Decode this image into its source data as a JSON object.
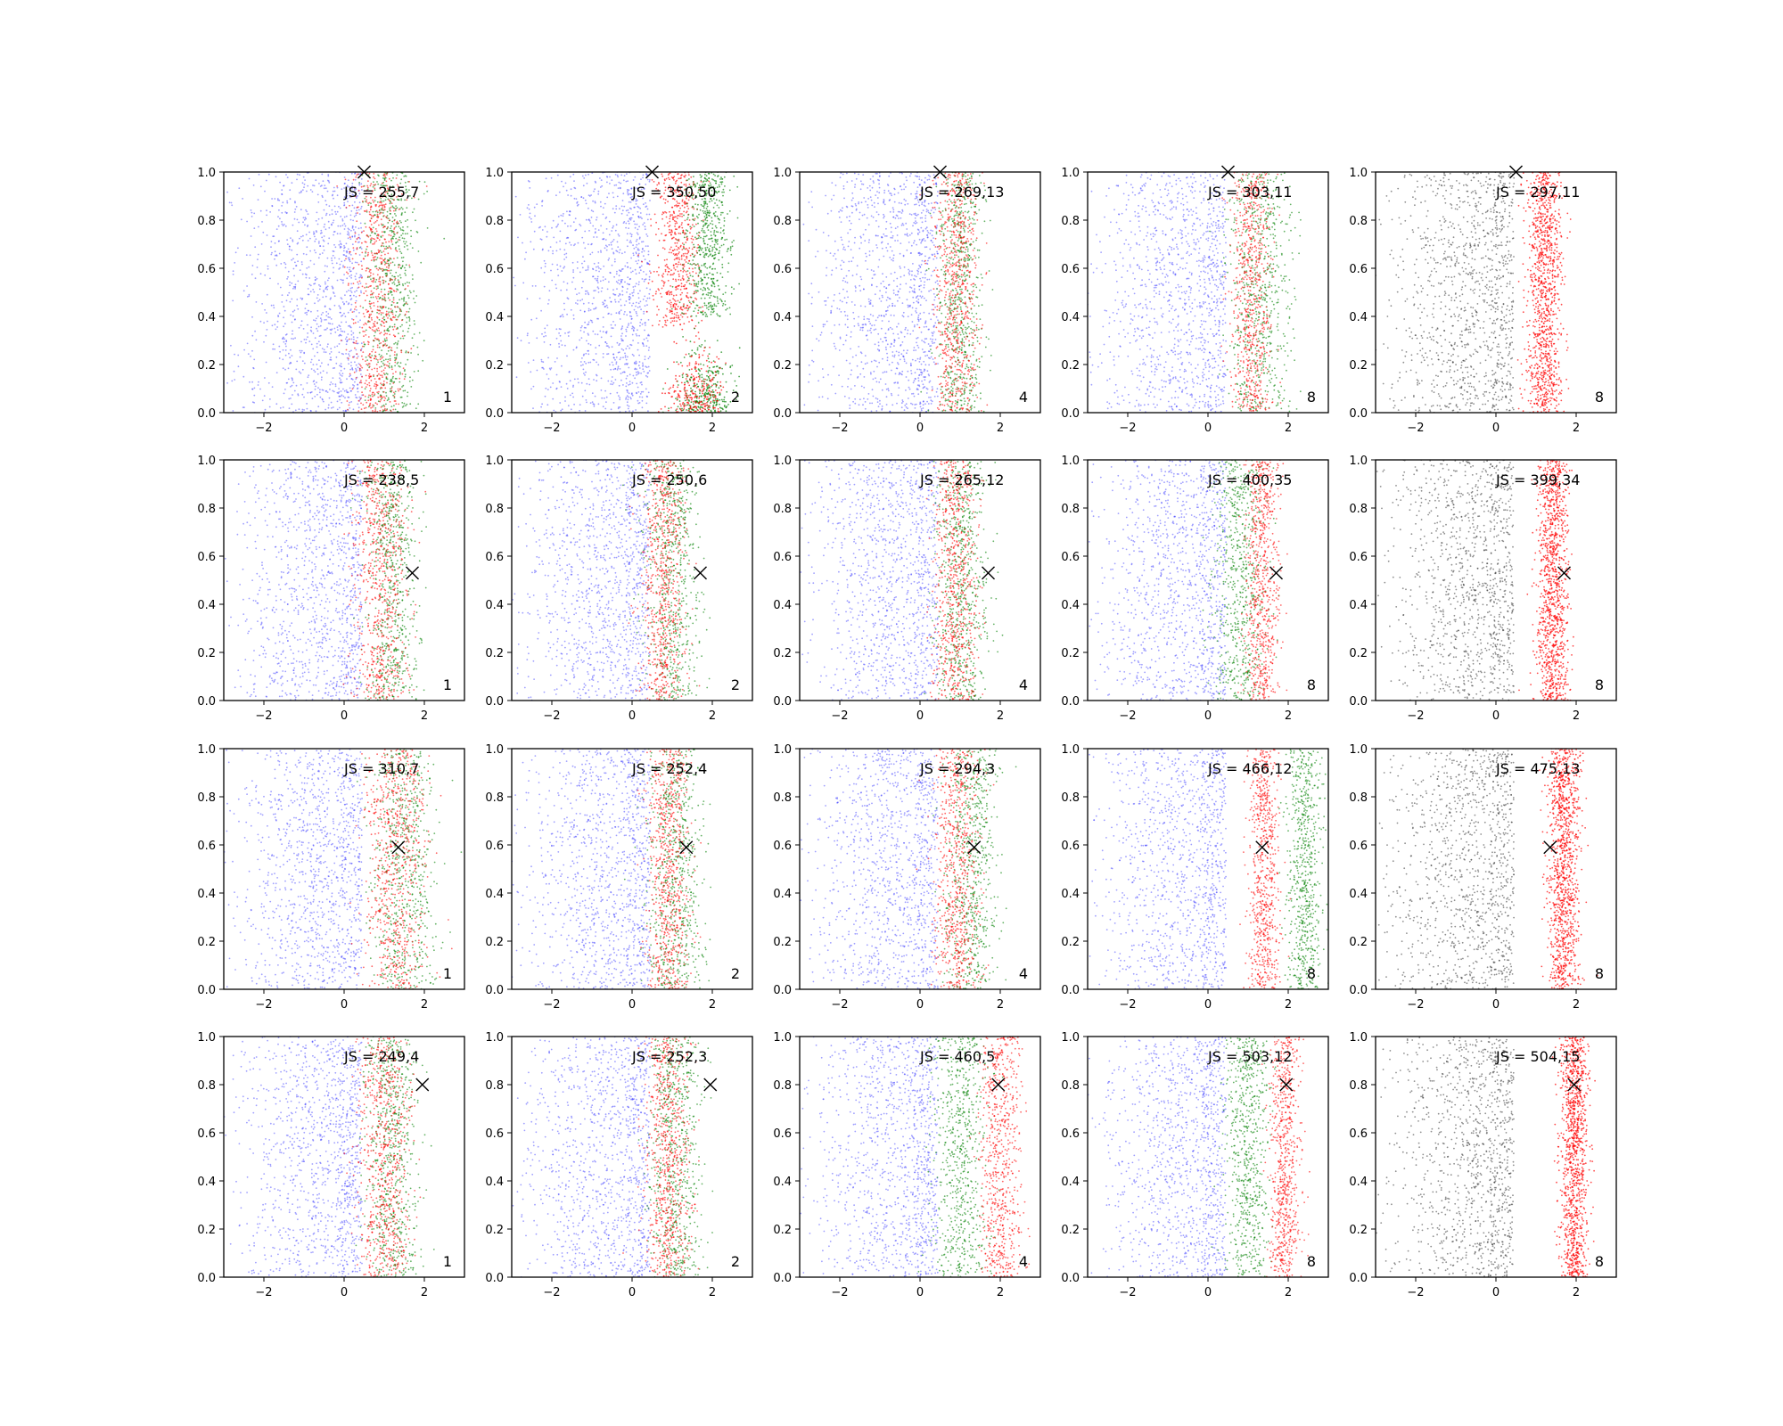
{
  "chart_data": {
    "type": "scatter",
    "layout": {
      "rows": 4,
      "cols": 5
    },
    "xlim": [
      -3,
      3
    ],
    "ylim": [
      0,
      1
    ],
    "xticks": [
      -2,
      0,
      2
    ],
    "yticks": [
      0.0,
      0.2,
      0.4,
      0.6,
      0.8,
      1.0
    ],
    "xtick_labels": [
      "−2",
      "0",
      "2"
    ],
    "ytick_labels": [
      "0.0",
      "0.2",
      "0.4",
      "0.6",
      "0.8",
      "1.0"
    ],
    "grid": false,
    "colors": {
      "blue": "#4040ff",
      "red": "#ff0000",
      "green": "#008000",
      "gray": "#333333",
      "marker": "#000000"
    },
    "panels": [
      {
        "row": 0,
        "col": 0,
        "label": "JS = 255,7",
        "k": "1",
        "marker": {
          "x": 0.5,
          "y": 1.0
        },
        "mode": "mix",
        "red_center": 0.8,
        "red_spread": 0.6,
        "green_center": 1.2,
        "green_spread": 0.6
      },
      {
        "row": 0,
        "col": 1,
        "label": "JS = 350,50",
        "k": "2",
        "marker": {
          "x": 0.5,
          "y": 1.0
        },
        "mode": "split",
        "red_center": 1.1,
        "red_spread": 0.5,
        "green_center": 1.9,
        "green_spread": 0.5
      },
      {
        "row": 0,
        "col": 2,
        "label": "JS = 269,13",
        "k": "4",
        "marker": {
          "x": 0.5,
          "y": 1.0
        },
        "mode": "mix",
        "red_center": 0.9,
        "red_spread": 0.5,
        "green_center": 1.0,
        "green_spread": 0.5
      },
      {
        "row": 0,
        "col": 3,
        "label": "JS = 303,11",
        "k": "8",
        "marker": {
          "x": 0.5,
          "y": 1.0
        },
        "mode": "mix",
        "red_center": 1.1,
        "red_spread": 0.45,
        "green_center": 1.3,
        "green_spread": 0.7
      },
      {
        "row": 0,
        "col": 4,
        "label": "JS = 297,11",
        "k": "8",
        "marker": {
          "x": 0.5,
          "y": 1.0
        },
        "mode": "gray",
        "red_center": 1.2,
        "red_spread": 0.45
      },
      {
        "row": 1,
        "col": 0,
        "label": "JS = 238,5",
        "k": "1",
        "marker": {
          "x": 1.7,
          "y": 0.53
        },
        "mode": "mix",
        "red_center": 0.9,
        "red_spread": 0.6,
        "green_center": 1.2,
        "green_spread": 0.6
      },
      {
        "row": 1,
        "col": 1,
        "label": "JS = 250,6",
        "k": "2",
        "marker": {
          "x": 1.7,
          "y": 0.53
        },
        "mode": "mix",
        "red_center": 0.8,
        "red_spread": 0.5,
        "green_center": 1.0,
        "green_spread": 0.6
      },
      {
        "row": 1,
        "col": 2,
        "label": "JS = 265,12",
        "k": "4",
        "marker": {
          "x": 1.7,
          "y": 0.53
        },
        "mode": "mix",
        "red_center": 0.9,
        "red_spread": 0.5,
        "green_center": 1.0,
        "green_spread": 0.6
      },
      {
        "row": 1,
        "col": 3,
        "label": "JS = 400,35",
        "k": "8",
        "marker": {
          "x": 1.7,
          "y": 0.53
        },
        "mode": "mix",
        "red_center": 1.35,
        "red_spread": 0.4,
        "green_center": 0.8,
        "green_spread": 0.6
      },
      {
        "row": 1,
        "col": 4,
        "label": "JS = 399,34",
        "k": "8",
        "marker": {
          "x": 1.7,
          "y": 0.53
        },
        "mode": "gray",
        "red_center": 1.4,
        "red_spread": 0.4
      },
      {
        "row": 2,
        "col": 0,
        "label": "JS = 310,7",
        "k": "1",
        "marker": {
          "x": 1.35,
          "y": 0.59
        },
        "mode": "mix",
        "red_center": 1.3,
        "red_spread": 0.7,
        "green_center": 1.5,
        "green_spread": 0.7
      },
      {
        "row": 2,
        "col": 1,
        "label": "JS = 252,4",
        "k": "2",
        "marker": {
          "x": 1.35,
          "y": 0.59
        },
        "mode": "mix",
        "red_center": 0.9,
        "red_spread": 0.5,
        "green_center": 1.1,
        "green_spread": 0.6
      },
      {
        "row": 2,
        "col": 2,
        "label": "JS = 294,3",
        "k": "4",
        "marker": {
          "x": 1.35,
          "y": 0.59
        },
        "mode": "mix",
        "red_center": 0.9,
        "red_spread": 0.5,
        "green_center": 1.3,
        "green_spread": 0.6
      },
      {
        "row": 2,
        "col": 3,
        "label": "JS = 466,12",
        "k": "8",
        "marker": {
          "x": 1.35,
          "y": 0.59
        },
        "mode": "mix",
        "red_center": 1.4,
        "red_spread": 0.35,
        "green_center": 2.4,
        "green_spread": 0.4
      },
      {
        "row": 2,
        "col": 4,
        "label": "JS = 475,13",
        "k": "8",
        "marker": {
          "x": 1.35,
          "y": 0.59
        },
        "mode": "gray",
        "red_center": 1.7,
        "red_spread": 0.4
      },
      {
        "row": 3,
        "col": 0,
        "label": "JS = 249,4",
        "k": "1",
        "marker": {
          "x": 1.95,
          "y": 0.8
        },
        "mode": "mix",
        "red_center": 1.0,
        "red_spread": 0.6,
        "green_center": 1.2,
        "green_spread": 0.6
      },
      {
        "row": 3,
        "col": 1,
        "label": "JS = 252,3",
        "k": "2",
        "marker": {
          "x": 1.95,
          "y": 0.8
        },
        "mode": "mix",
        "red_center": 0.9,
        "red_spread": 0.5,
        "green_center": 1.1,
        "green_spread": 0.6
      },
      {
        "row": 3,
        "col": 2,
        "label": "JS = 460,5",
        "k": "4",
        "marker": {
          "x": 1.95,
          "y": 0.8
        },
        "mode": "mix",
        "red_center": 2.0,
        "red_spread": 0.45,
        "green_center": 1.0,
        "green_spread": 0.6
      },
      {
        "row": 3,
        "col": 3,
        "label": "JS = 503,12",
        "k": "8",
        "marker": {
          "x": 1.95,
          "y": 0.8
        },
        "mode": "mix",
        "red_center": 1.9,
        "red_spread": 0.35,
        "green_center": 1.0,
        "green_spread": 0.5
      },
      {
        "row": 3,
        "col": 4,
        "label": "JS = 504,15",
        "k": "8",
        "marker": {
          "x": 1.95,
          "y": 0.8
        },
        "mode": "gray",
        "red_center": 1.95,
        "red_spread": 0.35
      }
    ]
  }
}
